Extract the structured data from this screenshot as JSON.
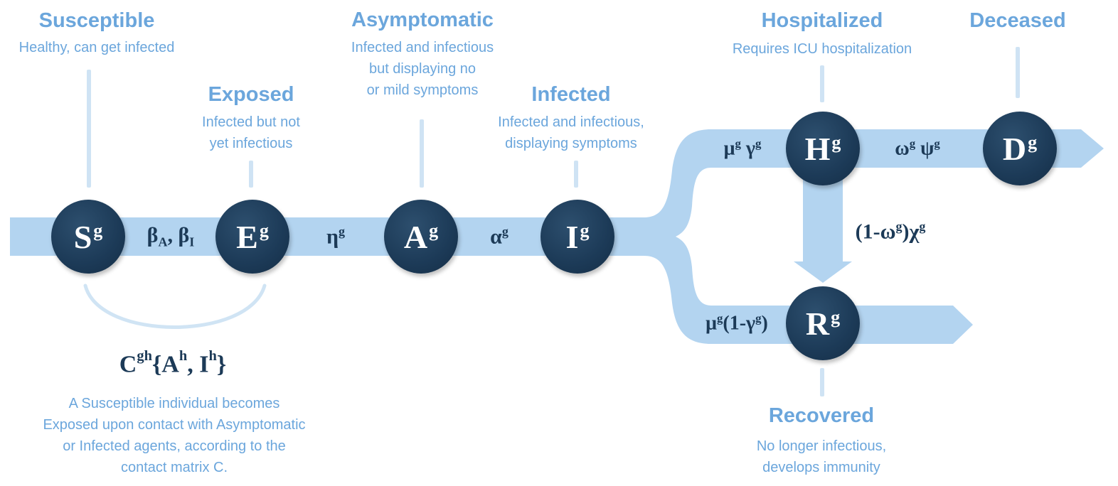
{
  "colors": {
    "band": "#b3d4f0",
    "node": "#1c3a57",
    "label": "#6ba6dc",
    "stem": "#cfe3f4",
    "rate_text": "#1c3a57"
  },
  "compartments": {
    "susceptible": {
      "title": "Susceptible",
      "desc": [
        "Healthy, can get infected"
      ],
      "symbol": "S",
      "sup": "g"
    },
    "exposed": {
      "title": "Exposed",
      "desc": [
        "Infected but not",
        "yet infectious"
      ],
      "symbol": "E",
      "sup": "g"
    },
    "asymptomatic": {
      "title": "Asymptomatic",
      "desc": [
        "Infected and infectious",
        "but displaying no",
        "or mild symptoms"
      ],
      "symbol": "A",
      "sup": "g"
    },
    "infected": {
      "title": "Infected",
      "desc": [
        "Infected and infectious,",
        "displaying symptoms"
      ],
      "symbol": "I",
      "sup": "g"
    },
    "hospitalized": {
      "title": "Hospitalized",
      "desc": [
        "Requires ICU hospitalization"
      ],
      "symbol": "H",
      "sup": "g"
    },
    "deceased": {
      "title": "Deceased",
      "desc": [],
      "symbol": "D",
      "sup": "g"
    },
    "recovered": {
      "title": "Recovered",
      "desc": [
        "No longer infectious,",
        "develops immunity"
      ],
      "symbol": "R",
      "sup": "g"
    }
  },
  "rates": {
    "s_to_e": "β_A, β_I",
    "e_to_a": "η^g",
    "a_to_i": "α^g",
    "i_to_h": "μ^g γ^g",
    "h_to_d": "ω^g ψ^g",
    "h_to_r": "(1-ω^g)χ^g",
    "i_to_r": "μ^g(1-γ^g)"
  },
  "contact": {
    "formula": "C^gh{A^h, I^h}",
    "note": [
      "A Susceptible individual becomes",
      "Exposed upon contact with Asymptomatic",
      "or Infected agents, according to the",
      "contact matrix C."
    ]
  }
}
